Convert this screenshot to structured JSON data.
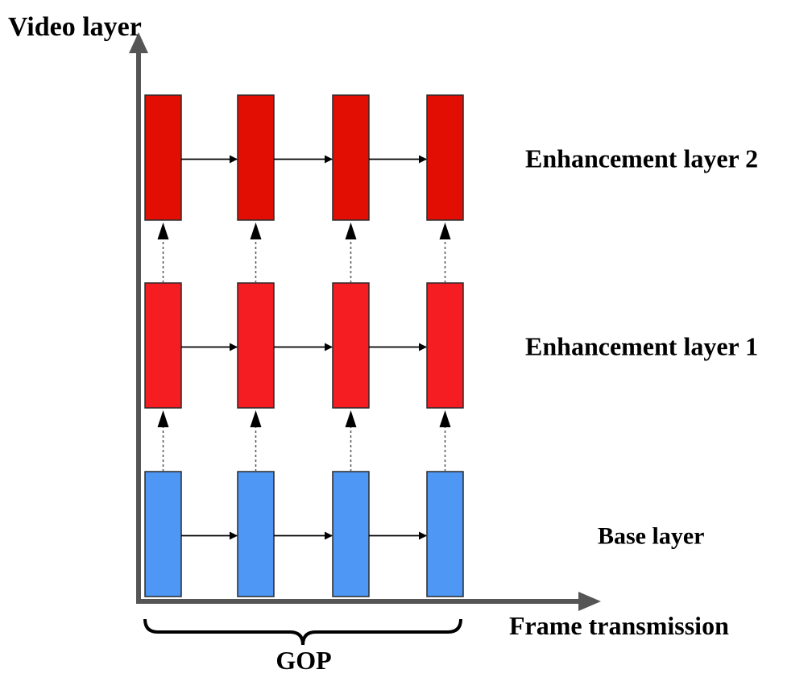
{
  "axes": {
    "y_label": "Video layer",
    "x_label": "Frame transmission"
  },
  "group_label": "GOP",
  "colors": {
    "axis": "#555555",
    "enhancement_layer_2": "#E20E04",
    "enhancement_layer_1": "#F51C22",
    "base_layer": "#4F97F5",
    "block_stroke": "#2a2a2a",
    "arrow": "#000000"
  },
  "frames_per_layer": 4,
  "layers": [
    {
      "label": "Enhancement layer 2",
      "color_key": "enhancement_layer_2"
    },
    {
      "label": "Enhancement layer 1",
      "color_key": "enhancement_layer_1"
    },
    {
      "label": "Base layer",
      "color_key": "base_layer"
    }
  ]
}
